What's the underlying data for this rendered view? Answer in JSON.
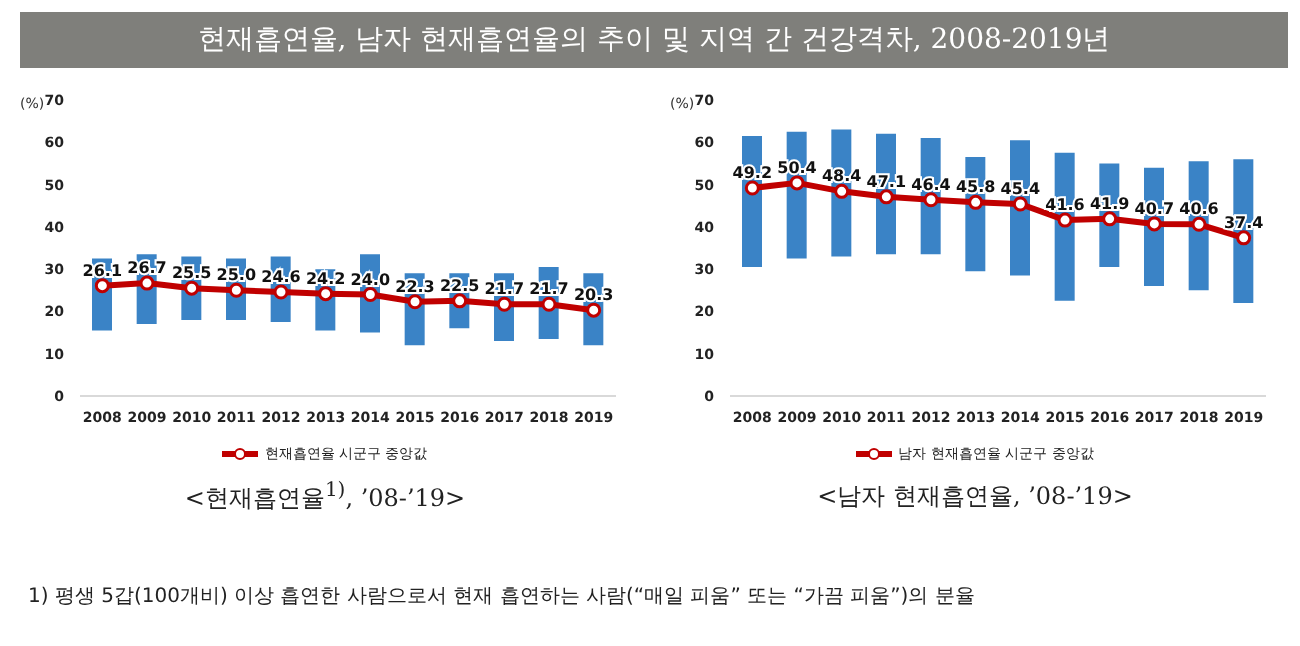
{
  "chart_data": [
    {
      "type": "bar",
      "title": "현재흡연율, 남자 현재흡연율의 추이 및 지역 간 건강격차, 2008-2019년",
      "subtitle": "<현재흡연율$^{1)}$, ’08-’19>",
      "ylabel": "(%)",
      "annotations": [
        "1) 평생 5갑(100개비) 이상 흡연한 사람으로서 현재 흡연하는 사람(“매일 피움” 또는 “가끔 피움”)의 분율"
      ],
      "categories": [
        "2008",
        "2009",
        "2010",
        "2011",
        "2012",
        "2013",
        "2014",
        "2015",
        "2016",
        "2017",
        "2018",
        "2019"
      ],
      "ylim": [
        0,
        70
      ],
      "yticks": [
        0,
        10,
        20,
        30,
        40,
        50,
        60,
        70
      ],
      "grid": false,
      "legend": "bottom",
      "marker": "circle",
      "series": [
        {
          "color": "#3a83c6",
          "base": [
            15.5,
            17,
            18,
            18,
            17.5,
            15.5,
            15,
            12,
            16,
            13,
            13.5,
            12
          ],
          "values": [
            17,
            16.5,
            15,
            14.5,
            15.5,
            14.5,
            18.5,
            17,
            13,
            16,
            17,
            17
          ]
        },
        {
          "type": "line",
          "name": "현재흡연율 시군구 중앙값",
          "color": "#c00000",
          "values": [
            26.1,
            26.7,
            25.5,
            25.0,
            24.6,
            24.2,
            24.0,
            22.3,
            22.5,
            21.7,
            21.7,
            20.3
          ],
          "value_labels": [
            "26.1",
            "26.7",
            "25.5",
            "25.0",
            "24.6",
            "24.2",
            "24.0",
            "22.3",
            "22.5",
            "21.7",
            "21.7",
            "20.3"
          ]
        }
      ]
    },
    {
      "type": "bar",
      "subtitle": "<남자 현재흡연율, ’08-’19>",
      "ylabel": "(%)",
      "categories": [
        "2008",
        "2009",
        "2010",
        "2011",
        "2012",
        "2013",
        "2014",
        "2015",
        "2016",
        "2017",
        "2018",
        "2019"
      ],
      "ylim": [
        0,
        70
      ],
      "yticks": [
        0,
        10,
        20,
        30,
        40,
        50,
        60,
        70
      ],
      "grid": false,
      "legend": "bottom",
      "marker": "circle",
      "series": [
        {
          "color": "#3a83c6",
          "base": [
            30.5,
            32.5,
            33,
            33.5,
            33.5,
            29.5,
            28.5,
            22.5,
            30.5,
            26,
            25,
            22
          ],
          "values": [
            31,
            30,
            30,
            28.5,
            27.5,
            27,
            32,
            35,
            24.5,
            28,
            30.5,
            34
          ]
        },
        {
          "type": "line",
          "name": "남자 현재흡연율 시군구 중앙값",
          "color": "#c00000",
          "values": [
            49.2,
            50.4,
            48.4,
            47.1,
            46.4,
            45.8,
            45.4,
            41.6,
            41.9,
            40.7,
            40.6,
            37.4
          ],
          "value_labels": [
            "49.2",
            "50.4",
            "48.4",
            "47.1",
            "46.4",
            "45.8",
            "45.4",
            "41.6",
            "41.9",
            "40.7",
            "40.6",
            "37.4"
          ]
        }
      ]
    }
  ]
}
